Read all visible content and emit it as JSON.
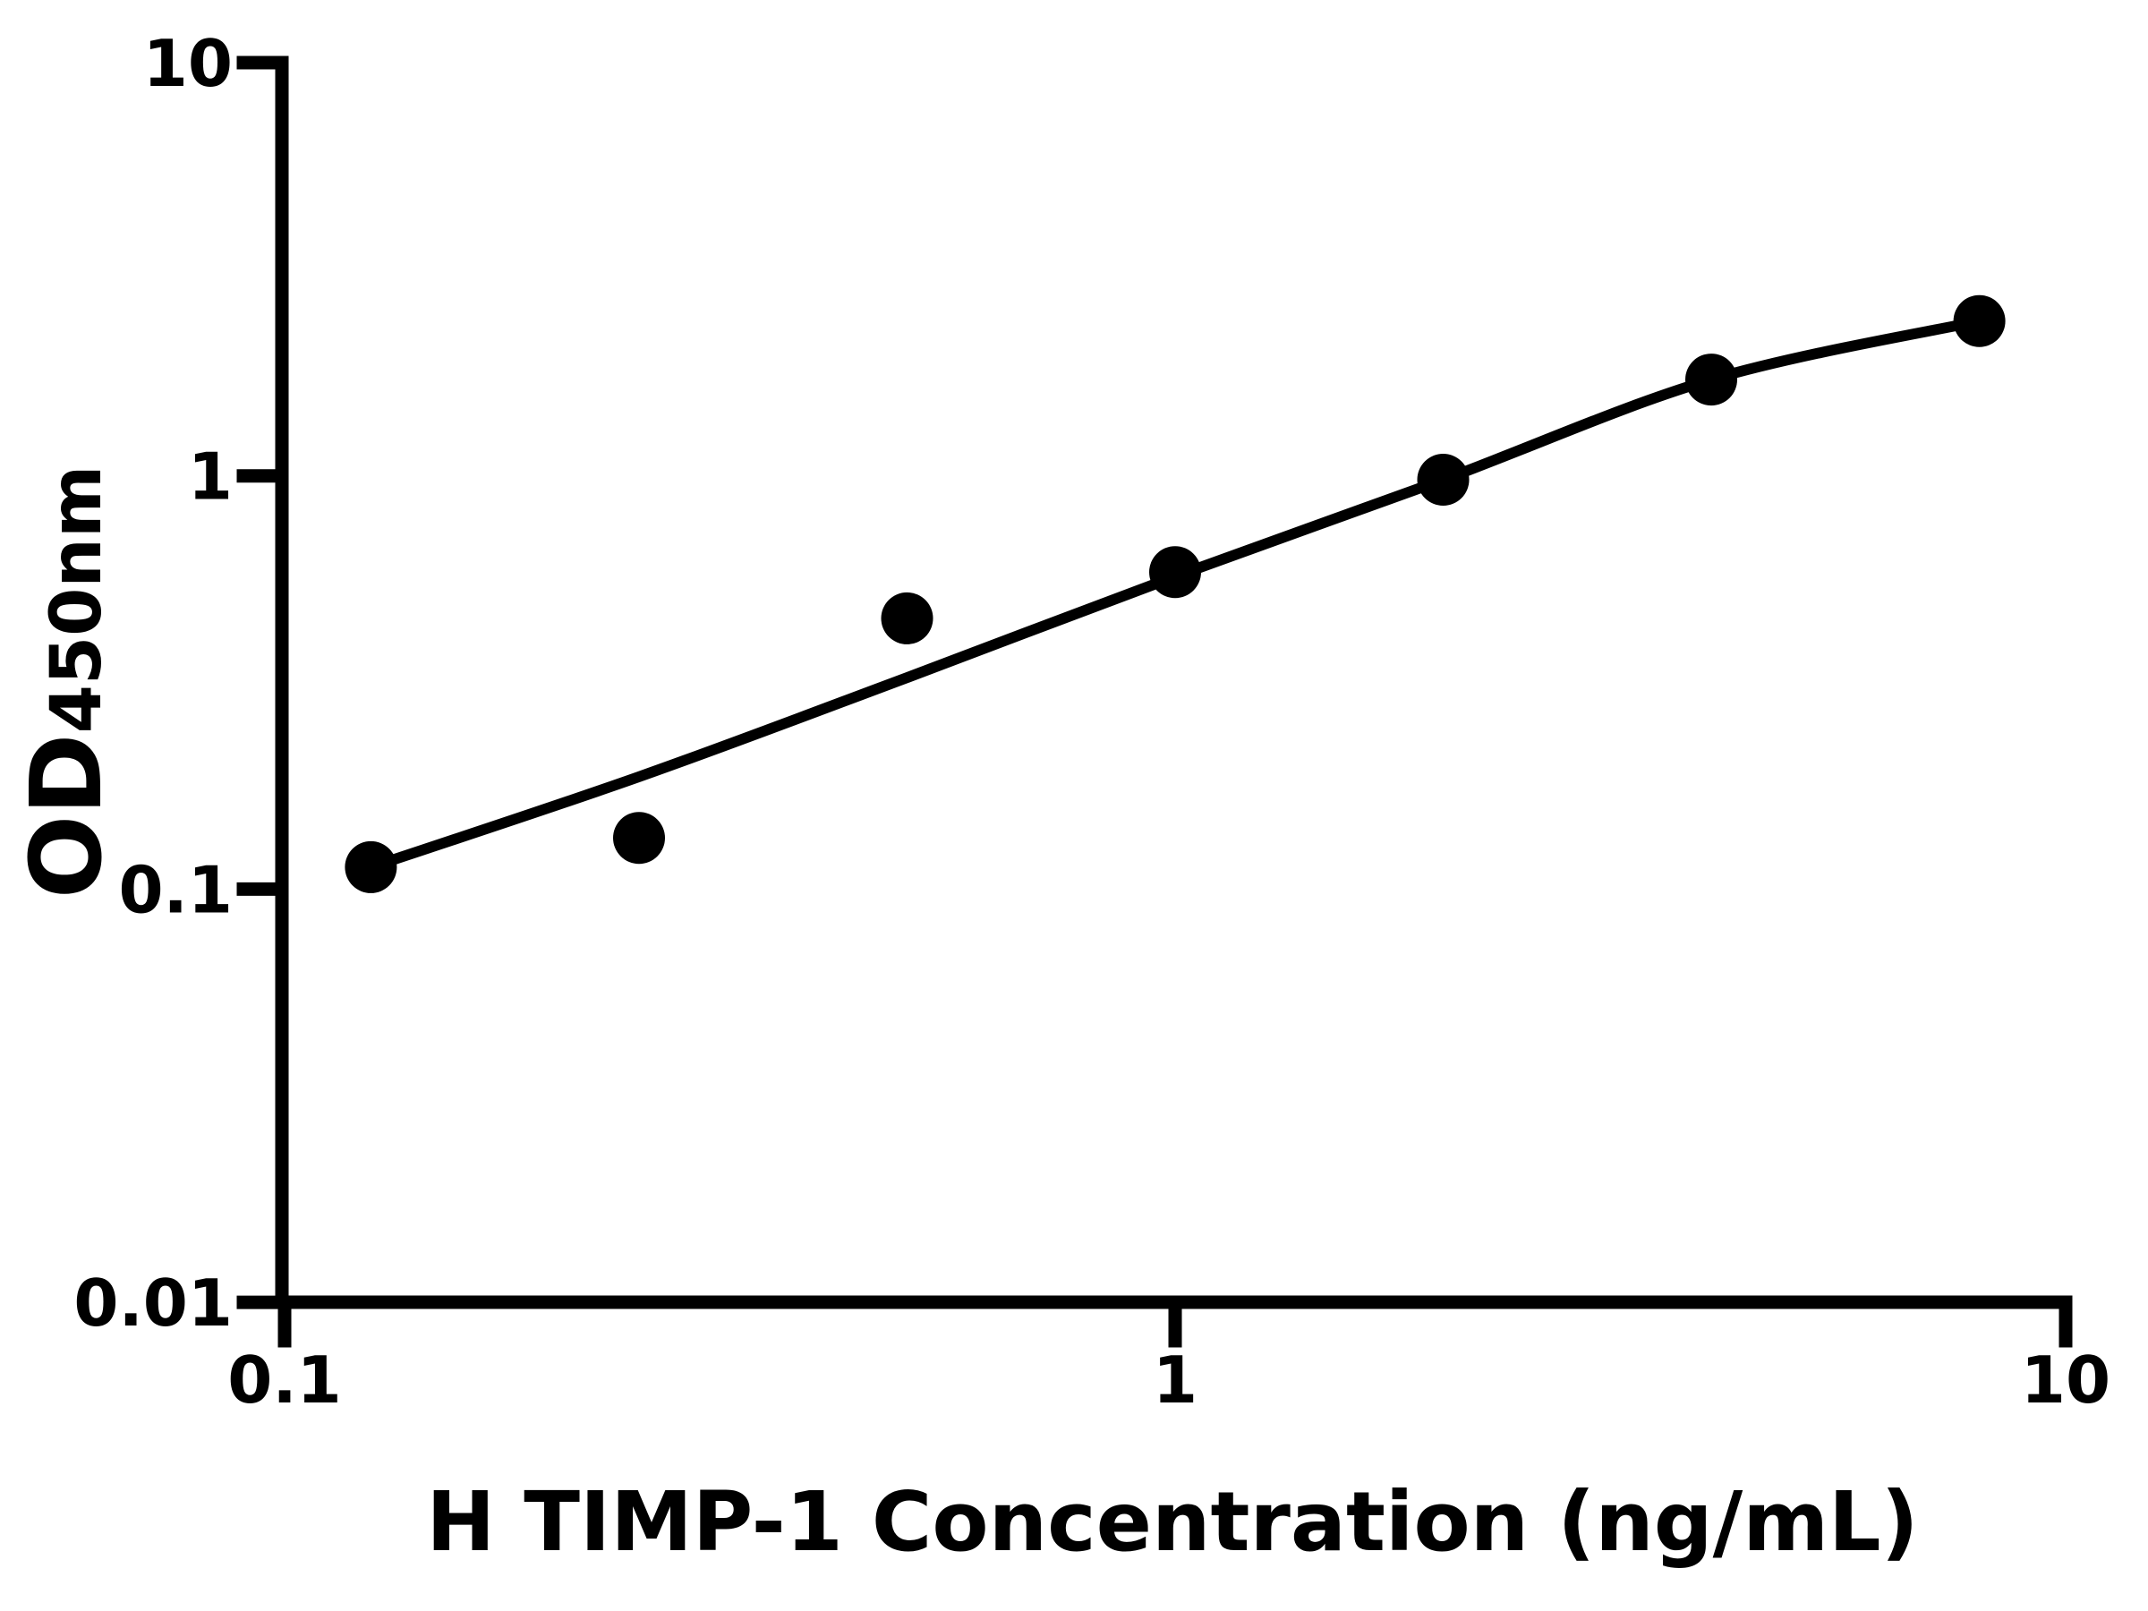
{
  "chart_data": {
    "type": "scatter",
    "title": "",
    "xlabel": "H TIMP-1 Concentration (ng/mL)",
    "ylabel": "OD",
    "ylabel_sub": "450nm",
    "x_scale": "log",
    "y_scale": "log",
    "xlim": [
      0.1,
      10
    ],
    "ylim": [
      0.01,
      10
    ],
    "grid": "off",
    "legend": "none",
    "x_ticks": [
      {
        "value": 0.1,
        "label": "0.1"
      },
      {
        "value": 1,
        "label": "1"
      },
      {
        "value": 10,
        "label": "10"
      }
    ],
    "y_ticks": [
      {
        "value": 10,
        "label": "10"
      },
      {
        "value": 1,
        "label": "1"
      },
      {
        "value": 0.1,
        "label": "0.1"
      },
      {
        "value": 0.01,
        "label": "0.01"
      }
    ],
    "series": [
      {
        "name": "standard-points",
        "type": "scatter",
        "marker": "filled-circle",
        "points": [
          {
            "x": 0.125,
            "y": 0.113
          },
          {
            "x": 0.25,
            "y": 0.133
          },
          {
            "x": 0.5,
            "y": 0.452
          },
          {
            "x": 1,
            "y": 0.585
          },
          {
            "x": 2,
            "y": 0.979
          },
          {
            "x": 4,
            "y": 1.71
          },
          {
            "x": 8,
            "y": 2.37
          }
        ]
      },
      {
        "name": "fit-curve",
        "type": "line",
        "points": [
          {
            "x": 0.125,
            "y": 0.113
          },
          {
            "x": 0.25,
            "y": 0.187
          },
          {
            "x": 0.5,
            "y": 0.325
          },
          {
            "x": 1,
            "y": 0.571
          },
          {
            "x": 2,
            "y": 0.979
          },
          {
            "x": 4,
            "y": 1.71
          },
          {
            "x": 8,
            "y": 2.37
          }
        ]
      }
    ],
    "colors": {
      "foreground": "#000000",
      "background": "#ffffff",
      "points": "#000000",
      "curve": "#000000"
    }
  }
}
